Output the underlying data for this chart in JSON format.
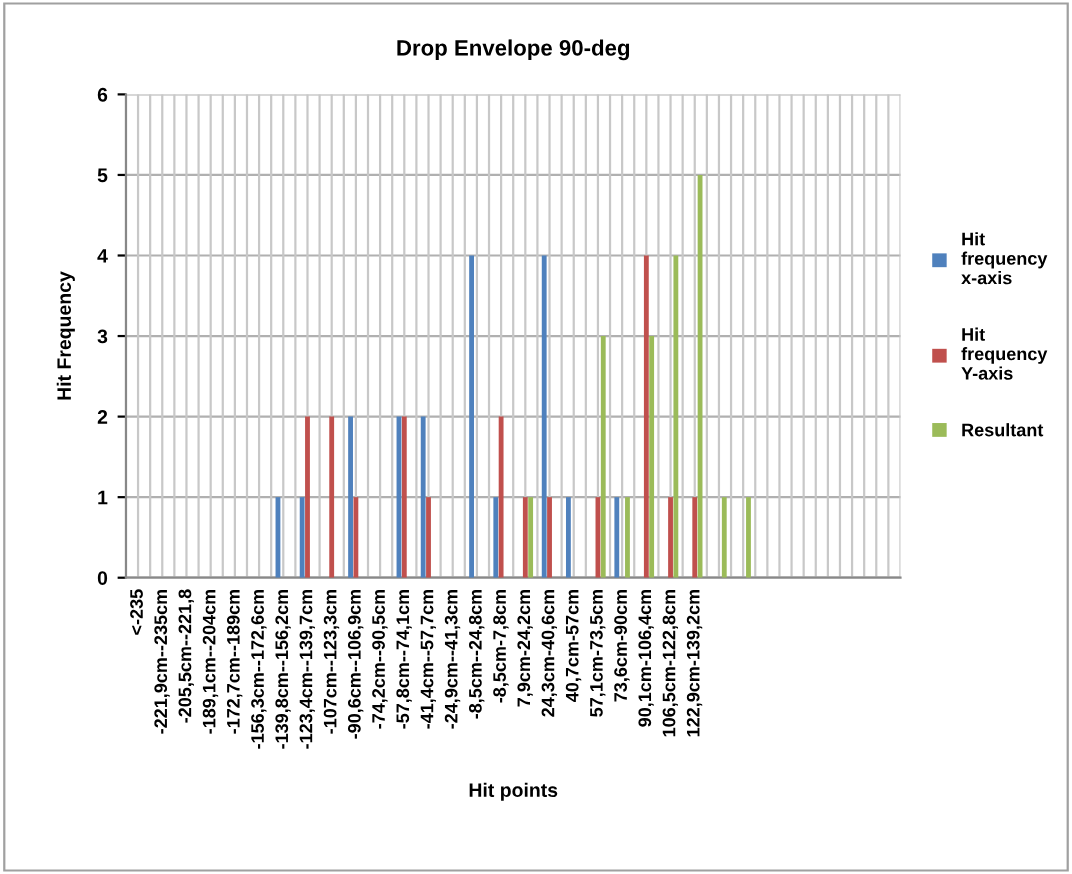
{
  "chart_data": {
    "type": "bar",
    "title": "Drop Envelope 90-deg",
    "xlabel": "Hit points",
    "ylabel": "Hit Frequency",
    "categories": [
      "<-235",
      "-221,9cm--235cm",
      "-205,5cm--221,8",
      "-189,1cm--204cm",
      "-172,7cm--189cm",
      "-156,3cm--172,6cm",
      "-139,8cm--156,2cm",
      "-123,4cm--139,7cm",
      "-107cm--123,3cm",
      "-90,6cm--106,9cm",
      "-74,2cm--90,5cm",
      "-57,8cm--74,1cm",
      "-41,4cm--57,7cm",
      "-24,9cm--41,3cm",
      "-8,5cm--24,8cm",
      "-8,5cm-7,8cm",
      "7,9cm-24,2cm",
      "24,3cm-40,6cm",
      "40,7cm-57cm",
      "57,1cm-73,5cm",
      "73,6cm-90cm",
      "90,1cm-106,4cm",
      "106,5cm-122,8cm",
      "122,9cm-139,2cm",
      null,
      null,
      null,
      null,
      null,
      null,
      null,
      null
    ],
    "series": [
      {
        "name": "Hit\nfrequency\nx-axis",
        "color": "#4f81bd",
        "values": [
          null,
          null,
          null,
          null,
          null,
          null,
          1,
          1,
          null,
          2,
          null,
          2,
          2,
          null,
          4,
          1,
          null,
          4,
          1,
          null,
          1,
          null,
          null,
          null,
          null,
          null,
          null,
          null,
          null,
          null,
          null,
          null
        ]
      },
      {
        "name": "Hit\nfrequency\nY-axis",
        "color": "#c0504d",
        "values": [
          null,
          null,
          null,
          null,
          null,
          null,
          null,
          2,
          2,
          1,
          null,
          2,
          1,
          null,
          null,
          2,
          1,
          1,
          null,
          1,
          null,
          4,
          1,
          1,
          null,
          null,
          null,
          null,
          null,
          null,
          null,
          null
        ]
      },
      {
        "name": "Resultant",
        "color": "#9bbb59",
        "values": [
          null,
          null,
          null,
          null,
          null,
          null,
          null,
          null,
          null,
          null,
          null,
          null,
          null,
          null,
          null,
          null,
          1,
          null,
          null,
          3,
          1,
          3,
          4,
          5,
          1,
          1,
          null,
          null,
          null,
          null,
          null,
          null
        ]
      }
    ],
    "ylim": [
      0,
      6
    ],
    "yticks": [
      0,
      1,
      2,
      3,
      4,
      5,
      6
    ],
    "grid": true,
    "legend": "right"
  }
}
